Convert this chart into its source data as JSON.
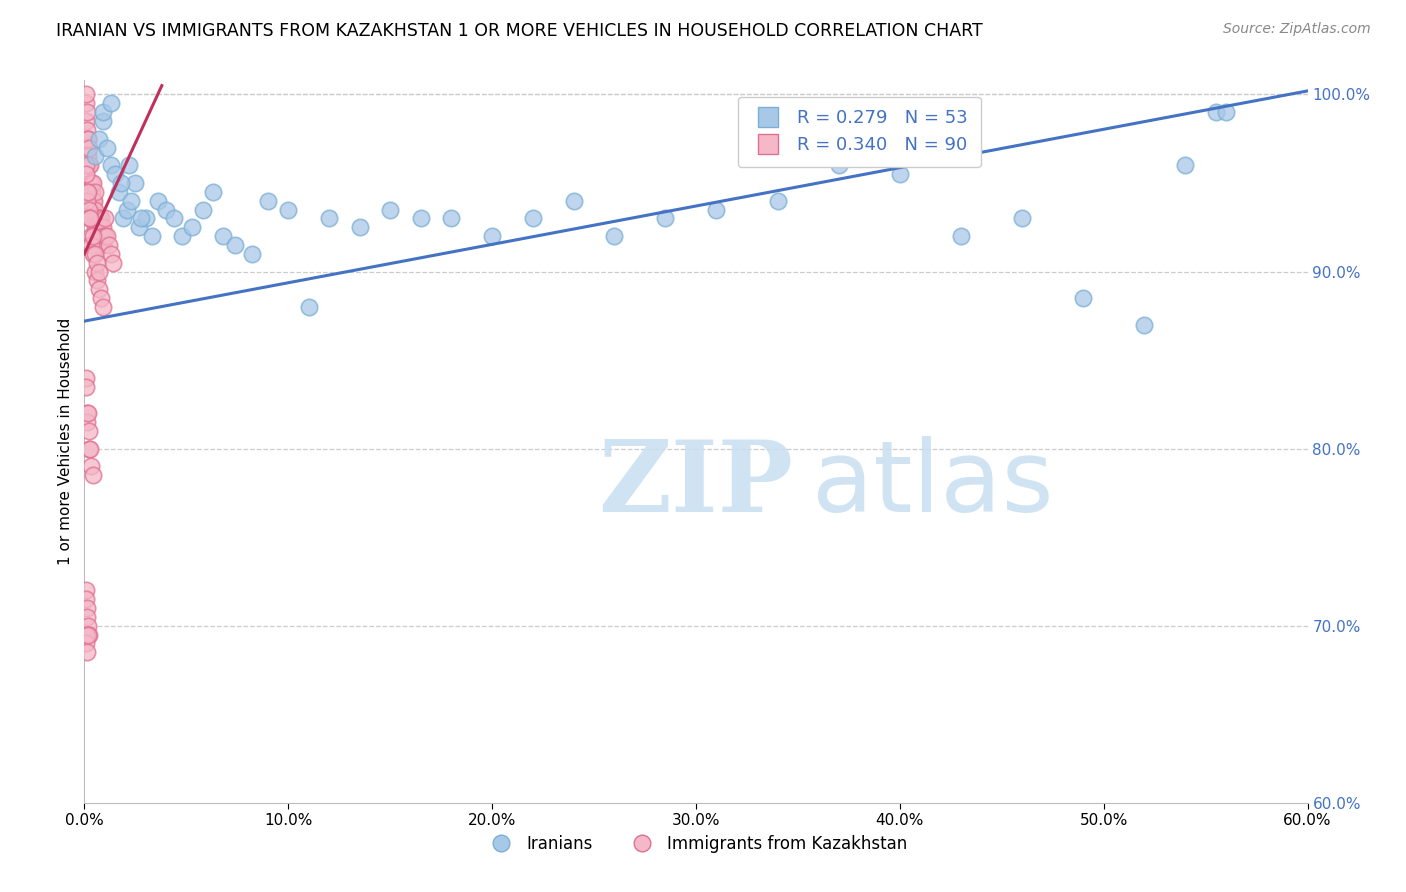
{
  "title": "IRANIAN VS IMMIGRANTS FROM KAZAKHSTAN 1 OR MORE VEHICLES IN HOUSEHOLD CORRELATION CHART",
  "source": "Source: ZipAtlas.com",
  "ylabel": "1 or more Vehicles in Household",
  "legend_iranians": "Iranians",
  "legend_kazakhstan": "Immigrants from Kazakhstan",
  "R_iranians": 0.279,
  "N_iranians": 53,
  "R_kazakhstan": 0.34,
  "N_kazakhstan": 90,
  "color_iranians": "#a8c8e8",
  "color_iranians_edge": "#7bafd4",
  "color_kazakhstan": "#f4b8c8",
  "color_kazakhstan_edge": "#e07090",
  "trendline_iranians": "#4472c4",
  "trendline_kazakhstan": "#c0305a",
  "x_min": 0.0,
  "x_max": 0.6,
  "y_min": 0.6,
  "y_max": 1.008,
  "yticks": [
    0.7,
    0.8,
    0.9,
    1.0
  ],
  "ytick_top": 1.0,
  "xticks": [
    0.0,
    0.1,
    0.2,
    0.3,
    0.4,
    0.5,
    0.6
  ],
  "watermark_zip": "ZIP",
  "watermark_atlas": "atlas",
  "iran_trend_x0": 0.0,
  "iran_trend_x1": 0.6,
  "iran_trend_y0": 0.872,
  "iran_trend_y1": 1.002,
  "kaz_trend_x0": 0.0,
  "kaz_trend_x1": 0.038,
  "kaz_trend_y0": 0.91,
  "kaz_trend_y1": 1.005,
  "iranians_x": [
    0.005,
    0.007,
    0.009,
    0.011,
    0.013,
    0.015,
    0.017,
    0.019,
    0.021,
    0.023,
    0.025,
    0.027,
    0.03,
    0.033,
    0.036,
    0.04,
    0.044,
    0.048,
    0.053,
    0.058,
    0.063,
    0.068,
    0.074,
    0.082,
    0.09,
    0.1,
    0.11,
    0.12,
    0.135,
    0.15,
    0.165,
    0.18,
    0.2,
    0.22,
    0.24,
    0.26,
    0.285,
    0.31,
    0.34,
    0.37,
    0.4,
    0.43,
    0.46,
    0.49,
    0.52,
    0.54,
    0.555,
    0.56,
    0.009,
    0.013,
    0.018,
    0.022,
    0.028
  ],
  "iranians_y": [
    0.965,
    0.975,
    0.985,
    0.97,
    0.96,
    0.955,
    0.945,
    0.93,
    0.935,
    0.94,
    0.95,
    0.925,
    0.93,
    0.92,
    0.94,
    0.935,
    0.93,
    0.92,
    0.925,
    0.935,
    0.945,
    0.92,
    0.915,
    0.91,
    0.94,
    0.935,
    0.88,
    0.93,
    0.925,
    0.935,
    0.93,
    0.93,
    0.92,
    0.93,
    0.94,
    0.92,
    0.93,
    0.935,
    0.94,
    0.96,
    0.955,
    0.92,
    0.93,
    0.885,
    0.87,
    0.96,
    0.99,
    0.99,
    0.99,
    0.995,
    0.95,
    0.96,
    0.93
  ],
  "kazakhstan_x": [
    0.0008,
    0.0009,
    0.001,
    0.001,
    0.0012,
    0.0013,
    0.0014,
    0.0015,
    0.0016,
    0.0018,
    0.002,
    0.002,
    0.0022,
    0.0024,
    0.0026,
    0.0028,
    0.003,
    0.003,
    0.0032,
    0.0034,
    0.0036,
    0.0038,
    0.004,
    0.004,
    0.0042,
    0.0044,
    0.0046,
    0.005,
    0.005,
    0.0052,
    0.0054,
    0.006,
    0.006,
    0.0062,
    0.0064,
    0.007,
    0.007,
    0.0072,
    0.008,
    0.008,
    0.0082,
    0.009,
    0.009,
    0.0092,
    0.01,
    0.01,
    0.011,
    0.012,
    0.013,
    0.014,
    0.0008,
    0.001,
    0.0012,
    0.0015,
    0.002,
    0.0022,
    0.0025,
    0.003,
    0.0032,
    0.0035,
    0.004,
    0.0042,
    0.005,
    0.0052,
    0.006,
    0.0062,
    0.007,
    0.0072,
    0.008,
    0.009,
    0.0008,
    0.001,
    0.0012,
    0.0015,
    0.002,
    0.0022,
    0.0025,
    0.003,
    0.0035,
    0.004,
    0.0008,
    0.001,
    0.0012,
    0.0015,
    0.002,
    0.0022,
    0.0008,
    0.001,
    0.0012,
    0.002
  ],
  "kazakhstan_y": [
    0.995,
    1.0,
    0.985,
    0.975,
    0.98,
    0.97,
    0.965,
    0.99,
    0.96,
    0.975,
    0.975,
    0.965,
    0.97,
    0.96,
    0.95,
    0.945,
    0.96,
    0.95,
    0.945,
    0.94,
    0.95,
    0.945,
    0.95,
    0.94,
    0.935,
    0.93,
    0.94,
    0.945,
    0.935,
    0.93,
    0.925,
    0.93,
    0.925,
    0.92,
    0.915,
    0.93,
    0.925,
    0.92,
    0.93,
    0.925,
    0.915,
    0.925,
    0.92,
    0.915,
    0.93,
    0.92,
    0.92,
    0.915,
    0.91,
    0.905,
    0.96,
    0.955,
    0.945,
    0.94,
    0.945,
    0.935,
    0.93,
    0.93,
    0.92,
    0.915,
    0.92,
    0.91,
    0.91,
    0.9,
    0.905,
    0.895,
    0.9,
    0.89,
    0.885,
    0.88,
    0.84,
    0.835,
    0.82,
    0.815,
    0.82,
    0.81,
    0.8,
    0.8,
    0.79,
    0.785,
    0.72,
    0.715,
    0.71,
    0.705,
    0.7,
    0.695,
    0.695,
    0.69,
    0.685,
    0.695
  ]
}
